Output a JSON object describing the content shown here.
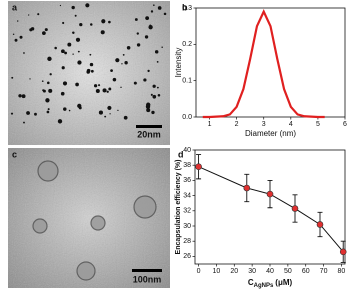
{
  "images": [
    {
      "panel_label": "a",
      "scale_bar": "20nm"
    },
    {
      "panel_label": "c",
      "scale_bar": "100nm"
    }
  ],
  "chart_data": [
    {
      "type": "line",
      "panel_label": "b",
      "x_label": "Diameter (nm)",
      "y_label": "Intensity",
      "x": [
        0.75,
        1,
        1.25,
        1.5,
        1.75,
        2,
        2.25,
        2.5,
        2.75,
        3,
        3.25,
        3.5,
        3.75,
        4,
        4.25,
        4.5,
        4.75,
        5,
        5.25
      ],
      "series": [
        {
          "color": "#e02020",
          "values": [
            0,
            0,
            0.001,
            0.002,
            0.007,
            0.028,
            0.077,
            0.16,
            0.25,
            0.29,
            0.25,
            0.16,
            0.077,
            0.028,
            0.007,
            0.002,
            0.001,
            0,
            0
          ]
        }
      ],
      "xlim": [
        0.5,
        6
      ],
      "xticks": [
        1,
        2,
        3,
        4,
        5,
        6
      ],
      "ylim": [
        0,
        0.3
      ],
      "yticks": [
        {
          "value": 0,
          "label": "0.0"
        },
        0.1,
        0.2,
        0.3
      ]
    },
    {
      "type": "errorbar",
      "panel_label": "d",
      "x_label": {
        "main": "C",
        "sub": "AgNPs",
        "unit": "(μM)"
      },
      "y_label": "Encapsulation efficiency (%)",
      "x": [
        0,
        27,
        40,
        54,
        68,
        81
      ],
      "series": [
        {
          "color": "#e03030",
          "line_color": "#111111",
          "values": [
            37.8,
            35,
            34.2,
            32.3,
            30.2,
            26.6
          ],
          "errors": [
            1.6,
            1.8,
            1.8,
            1.8,
            1.6,
            1.4
          ]
        }
      ],
      "xlim": [
        -2,
        82
      ],
      "xticks": [
        0,
        10,
        20,
        30,
        40,
        50,
        60,
        70,
        80
      ],
      "ylim": [
        25,
        40
      ],
      "yticks": [
        26,
        28,
        30,
        32,
        34,
        36,
        38,
        40
      ]
    }
  ]
}
